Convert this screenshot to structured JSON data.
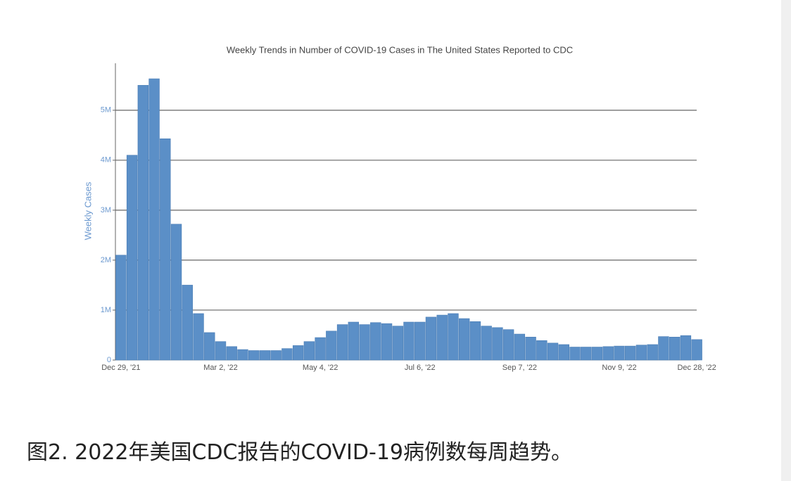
{
  "chart_data": {
    "type": "bar",
    "title": "Weekly Trends in Number of COVID-19 Cases in The United States Reported to CDC",
    "y_label": "Weekly Cases",
    "categories": [
      "Dec 29, '21",
      null,
      null,
      null,
      null,
      null,
      null,
      null,
      null,
      "Mar 2, '22",
      null,
      null,
      null,
      null,
      null,
      null,
      null,
      null,
      "May 4, '22",
      null,
      null,
      null,
      null,
      null,
      null,
      null,
      null,
      "Jul 6, '22",
      null,
      null,
      null,
      null,
      null,
      null,
      null,
      null,
      "Sep 7, '22",
      null,
      null,
      null,
      null,
      null,
      null,
      null,
      null,
      "Nov 9, '22",
      null,
      null,
      null,
      null,
      null,
      null,
      "Dec 28, '22"
    ],
    "values": [
      2100000,
      4100000,
      5500000,
      5630000,
      4430000,
      2720000,
      1500000,
      930000,
      550000,
      370000,
      270000,
      210000,
      190000,
      190000,
      190000,
      230000,
      290000,
      370000,
      450000,
      580000,
      710000,
      760000,
      710000,
      750000,
      730000,
      680000,
      760000,
      760000,
      860000,
      900000,
      930000,
      830000,
      770000,
      680000,
      650000,
      610000,
      520000,
      460000,
      390000,
      340000,
      310000,
      260000,
      260000,
      260000,
      270000,
      280000,
      280000,
      300000,
      310000,
      470000,
      460000,
      490000,
      410000
    ],
    "color": "#5b8fc7",
    "ylim": [
      0,
      5940000
    ],
    "yticks": [
      0,
      {
        "value": 1000000,
        "label": "1M"
      },
      {
        "value": 2000000,
        "label": "2M"
      },
      {
        "value": 3000000,
        "label": "3M"
      },
      {
        "value": 4000000,
        "label": "4M"
      },
      {
        "value": 5000000,
        "label": "5M"
      }
    ],
    "grid": true
  },
  "caption": "图2. 2022年美国CDC报告的COVID-19病例数每周趋势。"
}
